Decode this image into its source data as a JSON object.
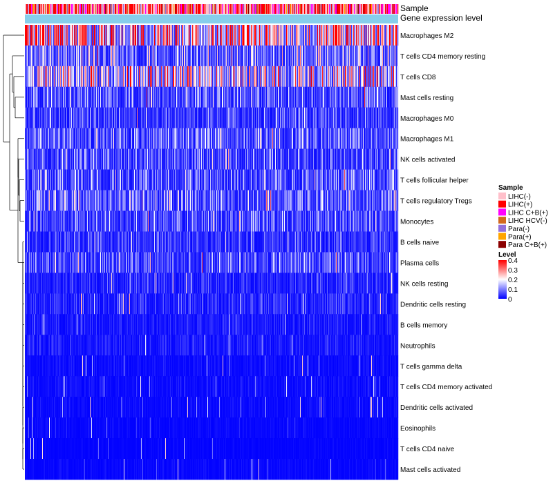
{
  "chart_data": {
    "type": "heatmap",
    "title": "",
    "column_annotations": [
      {
        "name": "Sample",
        "kind": "sample-group"
      },
      {
        "name": "Gene expression level",
        "kind": "gradient"
      }
    ],
    "rows": [
      {
        "label": "Macrophages M2",
        "mean_level": 0.24
      },
      {
        "label": "T cells CD4 memory resting",
        "mean_level": 0.09
      },
      {
        "label": "T cells CD8",
        "mean_level": 0.16
      },
      {
        "label": "Mast cells resting",
        "mean_level": 0.07
      },
      {
        "label": "Macrophages M0",
        "mean_level": 0.05
      },
      {
        "label": "Macrophages M1",
        "mean_level": 0.07
      },
      {
        "label": "NK cells activated",
        "mean_level": 0.06
      },
      {
        "label": "T cells follicular helper",
        "mean_level": 0.07
      },
      {
        "label": "T cells regulatory  Tregs",
        "mean_level": 0.08
      },
      {
        "label": "Monocytes",
        "mean_level": 0.06
      },
      {
        "label": "B cells naive",
        "mean_level": 0.04
      },
      {
        "label": "Plasma cells",
        "mean_level": 0.06
      },
      {
        "label": "NK cells resting",
        "mean_level": 0.03
      },
      {
        "label": "Dendritic cells resting",
        "mean_level": 0.03
      },
      {
        "label": "B cells memory",
        "mean_level": 0.02
      },
      {
        "label": "Neutrophils",
        "mean_level": 0.02
      },
      {
        "label": "T cells gamma delta",
        "mean_level": 0.01
      },
      {
        "label": "T cells CD4 memory activated",
        "mean_level": 0.01
      },
      {
        "label": "Dendritic cells activated",
        "mean_level": 0.008
      },
      {
        "label": "Eosinophils",
        "mean_level": 0.006
      },
      {
        "label": "T cells CD4 naive",
        "mean_level": 0.004
      },
      {
        "label": "Mast cells activated",
        "mean_level": 0.006
      }
    ],
    "n_columns": 540,
    "color_scale": {
      "min": 0,
      "max": 0.4,
      "low": "#0000ff",
      "mid": "#ffffff",
      "high": "#ff0000"
    },
    "legend_sample": {
      "title": "Sample",
      "items": [
        {
          "label": "LIHC(-)",
          "color": "#ffc0cb"
        },
        {
          "label": "LIHC(+)",
          "color": "#ff0000"
        },
        {
          "label": "LIHC C+B(+)",
          "color": "#ff00ff"
        },
        {
          "label": "LIHC HCV(-)",
          "color": "#d2691e"
        },
        {
          "label": "Para(-)",
          "color": "#9370db"
        },
        {
          "label": "Para(+)",
          "color": "#ffa500"
        },
        {
          "label": "Para C+B(+)",
          "color": "#8b0000"
        }
      ]
    },
    "legend_level": {
      "title": "Level",
      "ticks": [
        "0.4",
        "0.3",
        "0.2",
        "0.1",
        "0"
      ],
      "tick_values": [
        0.4,
        0.3,
        0.2,
        0.1,
        0
      ]
    },
    "gene_expression_bar_color": "#87ceeb"
  }
}
